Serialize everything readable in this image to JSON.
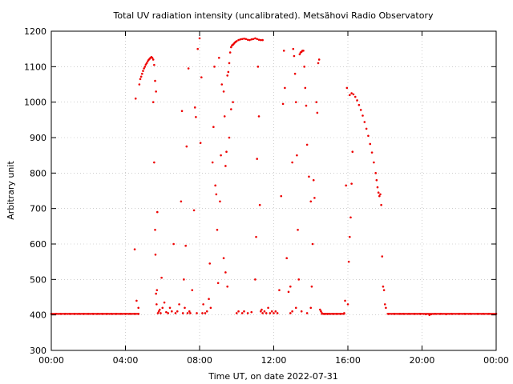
{
  "chart_data": {
    "type": "scatter",
    "title": "Total UV radiation intensity (uncalibrated). Metsähovi Radio Observatory",
    "xlabel": "Time UT, on date 2022-07-31",
    "ylabel": "Arbitrary unit",
    "xlim": [
      0,
      24
    ],
    "ylim": [
      300,
      1200
    ],
    "x_ticks": [
      {
        "value": 0,
        "label": "00:00"
      },
      {
        "value": 4,
        "label": "04:00"
      },
      {
        "value": 8,
        "label": "08:00"
      },
      {
        "value": 12,
        "label": "12:00"
      },
      {
        "value": 16,
        "label": "16:00"
      },
      {
        "value": 20,
        "label": "20:00"
      },
      {
        "value": 24,
        "label": "00:00"
      }
    ],
    "y_ticks": [
      300,
      400,
      500,
      600,
      700,
      800,
      900,
      1000,
      1100,
      1200
    ],
    "grid": true,
    "marker_color": "#ee0000",
    "series": [
      {
        "points": [
          [
            0.0,
            403
          ],
          [
            0.25,
            403
          ],
          [
            0.5,
            403
          ],
          [
            0.75,
            403
          ],
          [
            1.0,
            403
          ],
          [
            1.25,
            403
          ],
          [
            1.5,
            403
          ],
          [
            1.75,
            403
          ],
          [
            2.0,
            403
          ],
          [
            2.25,
            403
          ],
          [
            2.5,
            403
          ],
          [
            2.75,
            403
          ],
          [
            3.0,
            403
          ],
          [
            3.25,
            403
          ],
          [
            3.5,
            403
          ],
          [
            3.75,
            403
          ],
          [
            4.0,
            403
          ],
          [
            4.25,
            403
          ],
          [
            4.5,
            403
          ],
          [
            4.7,
            403
          ],
          [
            4.5,
            585
          ],
          [
            4.55,
            1010
          ],
          [
            4.6,
            440
          ],
          [
            4.7,
            420
          ],
          [
            4.75,
            1050
          ],
          [
            4.8,
            1065
          ],
          [
            4.85,
            1072
          ],
          [
            4.9,
            1080
          ],
          [
            4.95,
            1088
          ],
          [
            5.0,
            1095
          ],
          [
            5.05,
            1100
          ],
          [
            5.1,
            1106
          ],
          [
            5.15,
            1110
          ],
          [
            5.2,
            1115
          ],
          [
            5.25,
            1119
          ],
          [
            5.3,
            1122
          ],
          [
            5.35,
            1125
          ],
          [
            5.4,
            1127
          ],
          [
            5.45,
            1125
          ],
          [
            5.5,
            1120
          ],
          [
            5.55,
            1105
          ],
          [
            5.6,
            1060
          ],
          [
            5.65,
            1030
          ],
          [
            5.5,
            1000
          ],
          [
            5.55,
            830
          ],
          [
            5.6,
            640
          ],
          [
            5.62,
            570
          ],
          [
            5.65,
            460
          ],
          [
            5.68,
            430
          ],
          [
            5.7,
            470
          ],
          [
            5.72,
            690
          ],
          [
            5.75,
            405
          ],
          [
            5.8,
            410
          ],
          [
            5.85,
            415
          ],
          [
            5.9,
            405
          ],
          [
            5.95,
            505
          ],
          [
            6.0,
            420
          ],
          [
            6.1,
            435
          ],
          [
            6.2,
            408
          ],
          [
            6.3,
            405
          ],
          [
            6.4,
            420
          ],
          [
            6.5,
            410
          ],
          [
            6.6,
            600
          ],
          [
            6.7,
            405
          ],
          [
            6.8,
            410
          ],
          [
            6.9,
            430
          ],
          [
            7.0,
            720
          ],
          [
            7.05,
            975
          ],
          [
            7.1,
            405
          ],
          [
            7.15,
            500
          ],
          [
            7.2,
            420
          ],
          [
            7.25,
            595
          ],
          [
            7.3,
            875
          ],
          [
            7.35,
            405
          ],
          [
            7.4,
            1095
          ],
          [
            7.45,
            410
          ],
          [
            7.5,
            405
          ],
          [
            7.6,
            470
          ],
          [
            7.7,
            695
          ],
          [
            7.75,
            985
          ],
          [
            7.8,
            958
          ],
          [
            7.85,
            405
          ],
          [
            7.9,
            1150
          ],
          [
            8.0,
            1180
          ],
          [
            8.05,
            885
          ],
          [
            8.1,
            1070
          ],
          [
            8.15,
            405
          ],
          [
            8.2,
            430
          ],
          [
            8.3,
            405
          ],
          [
            8.4,
            410
          ],
          [
            8.5,
            445
          ],
          [
            8.55,
            545
          ],
          [
            8.6,
            420
          ],
          [
            8.7,
            830
          ],
          [
            8.75,
            930
          ],
          [
            8.8,
            1100
          ],
          [
            8.85,
            765
          ],
          [
            8.9,
            740
          ],
          [
            8.95,
            640
          ],
          [
            9.0,
            490
          ],
          [
            9.05,
            1125
          ],
          [
            9.1,
            720
          ],
          [
            9.15,
            850
          ],
          [
            9.2,
            1050
          ],
          [
            9.3,
            1030
          ],
          [
            9.35,
            960
          ],
          [
            9.4,
            820
          ],
          [
            9.45,
            860
          ],
          [
            9.5,
            1075
          ],
          [
            9.55,
            1085
          ],
          [
            9.6,
            1110
          ],
          [
            9.65,
            1140
          ],
          [
            9.7,
            1155
          ],
          [
            9.75,
            1160
          ],
          [
            9.8,
            1162
          ],
          [
            9.85,
            1165
          ],
          [
            9.9,
            1168
          ],
          [
            9.95,
            1170
          ],
          [
            10.0,
            1172
          ],
          [
            10.1,
            1175
          ],
          [
            10.2,
            1177
          ],
          [
            10.3,
            1178
          ],
          [
            10.4,
            1179
          ],
          [
            10.5,
            1178
          ],
          [
            10.6,
            1176
          ],
          [
            10.7,
            1175
          ],
          [
            10.8,
            1177
          ],
          [
            10.9,
            1178
          ],
          [
            11.0,
            1180
          ],
          [
            11.1,
            1178
          ],
          [
            11.2,
            1176
          ],
          [
            11.3,
            1175
          ],
          [
            11.4,
            1175
          ],
          [
            9.3,
            560
          ],
          [
            9.4,
            520
          ],
          [
            9.5,
            480
          ],
          [
            9.6,
            900
          ],
          [
            9.7,
            980
          ],
          [
            9.8,
            1000
          ],
          [
            10.0,
            405
          ],
          [
            10.1,
            410
          ],
          [
            10.3,
            405
          ],
          [
            10.4,
            410
          ],
          [
            10.6,
            405
          ],
          [
            10.8,
            408
          ],
          [
            11.0,
            500
          ],
          [
            11.05,
            620
          ],
          [
            11.1,
            840
          ],
          [
            11.15,
            1100
          ],
          [
            11.2,
            960
          ],
          [
            11.25,
            710
          ],
          [
            11.3,
            410
          ],
          [
            11.35,
            415
          ],
          [
            11.4,
            405
          ],
          [
            11.5,
            410
          ],
          [
            11.6,
            405
          ],
          [
            11.7,
            420
          ],
          [
            11.8,
            405
          ],
          [
            11.9,
            410
          ],
          [
            12.0,
            405
          ],
          [
            12.1,
            410
          ],
          [
            12.2,
            405
          ],
          [
            12.3,
            470
          ],
          [
            12.4,
            735
          ],
          [
            12.5,
            995
          ],
          [
            12.55,
            1145
          ],
          [
            12.6,
            1040
          ],
          [
            12.7,
            560
          ],
          [
            12.8,
            465
          ],
          [
            12.9,
            480
          ],
          [
            13.0,
            830
          ],
          [
            13.05,
            1150
          ],
          [
            13.1,
            1130
          ],
          [
            13.15,
            1080
          ],
          [
            13.2,
            1000
          ],
          [
            13.25,
            850
          ],
          [
            13.3,
            640
          ],
          [
            13.35,
            500
          ],
          [
            13.4,
            1135
          ],
          [
            13.45,
            1140
          ],
          [
            13.5,
            1142
          ],
          [
            13.55,
            1145
          ],
          [
            13.6,
            1145
          ],
          [
            13.65,
            1100
          ],
          [
            13.7,
            1040
          ],
          [
            13.75,
            990
          ],
          [
            13.8,
            880
          ],
          [
            13.9,
            790
          ],
          [
            14.0,
            720
          ],
          [
            14.05,
            480
          ],
          [
            14.1,
            600
          ],
          [
            14.15,
            780
          ],
          [
            14.2,
            730
          ],
          [
            14.3,
            1000
          ],
          [
            14.35,
            970
          ],
          [
            14.4,
            1110
          ],
          [
            14.45,
            1120
          ],
          [
            14.5,
            415
          ],
          [
            14.55,
            410
          ],
          [
            14.6,
            405
          ],
          [
            14.7,
            403
          ],
          [
            14.8,
            403
          ],
          [
            14.9,
            403
          ],
          [
            15.0,
            403
          ],
          [
            15.2,
            403
          ],
          [
            15.4,
            403
          ],
          [
            15.6,
            403
          ],
          [
            15.8,
            405
          ],
          [
            12.9,
            405
          ],
          [
            13.0,
            410
          ],
          [
            13.2,
            420
          ],
          [
            13.5,
            410
          ],
          [
            13.8,
            405
          ],
          [
            14.0,
            420
          ],
          [
            15.85,
            440
          ],
          [
            15.9,
            765
          ],
          [
            15.95,
            1040
          ],
          [
            16.0,
            430
          ],
          [
            16.05,
            550
          ],
          [
            16.1,
            620
          ],
          [
            16.15,
            675
          ],
          [
            16.2,
            770
          ],
          [
            16.25,
            860
          ],
          [
            16.1,
            1020
          ],
          [
            16.2,
            1025
          ],
          [
            16.3,
            1022
          ],
          [
            16.4,
            1015
          ],
          [
            16.5,
            1005
          ],
          [
            16.6,
            992
          ],
          [
            16.7,
            978
          ],
          [
            16.8,
            962
          ],
          [
            16.9,
            944
          ],
          [
            17.0,
            925
          ],
          [
            17.1,
            905
          ],
          [
            17.2,
            882
          ],
          [
            17.3,
            858
          ],
          [
            17.4,
            830
          ],
          [
            17.5,
            800
          ],
          [
            17.55,
            780
          ],
          [
            17.6,
            760
          ],
          [
            17.65,
            745
          ],
          [
            17.7,
            735
          ],
          [
            17.75,
            740
          ],
          [
            17.8,
            710
          ],
          [
            17.85,
            565
          ],
          [
            17.9,
            480
          ],
          [
            17.95,
            470
          ],
          [
            18.0,
            430
          ],
          [
            18.05,
            420
          ],
          [
            18.2,
            403
          ],
          [
            18.5,
            403
          ],
          [
            18.8,
            403
          ],
          [
            19.0,
            403
          ],
          [
            19.3,
            403
          ],
          [
            19.6,
            403
          ],
          [
            19.9,
            403
          ],
          [
            20.2,
            402
          ],
          [
            20.4,
            400
          ],
          [
            20.5,
            402
          ],
          [
            20.7,
            403
          ],
          [
            21.0,
            403
          ],
          [
            21.3,
            402
          ],
          [
            21.6,
            403
          ],
          [
            22.0,
            403
          ],
          [
            22.3,
            403
          ],
          [
            22.6,
            403
          ],
          [
            23.0,
            403
          ],
          [
            23.3,
            403
          ],
          [
            23.6,
            403
          ],
          [
            24.0,
            403
          ]
        ]
      }
    ]
  }
}
